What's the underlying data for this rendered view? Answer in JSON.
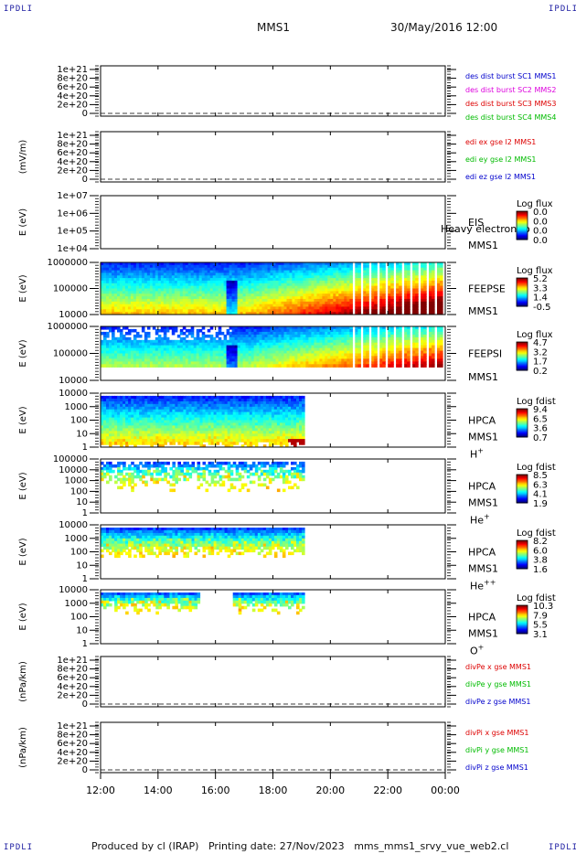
{
  "header": {
    "corner_label": "IPDLI",
    "spacecraft": "MMS1",
    "date_time": "30/May/2016 12:00"
  },
  "footer": {
    "produced_by": "Produced by cl (IRAP)",
    "printing_date": "Printing date: 27/Nov/2023",
    "filename": "mms_mms1_srvy_vue_web2.cl"
  },
  "colors": {
    "frame": "#000000",
    "red": "#dd0000",
    "magenta": "#dd00dd",
    "green": "#00bb00",
    "blue": "#0000cc"
  },
  "chart_data": [
    {
      "id": "des",
      "type": "line",
      "ylabel": "",
      "yticks": [
        "1e+21",
        "8e+20",
        "6e+20",
        "4e+20",
        "2e+20",
        "0"
      ],
      "ylim": [
        0,
        1e+21
      ],
      "legend": [
        {
          "name": "des dist burst SC1 MMS1",
          "color": "#0000cc"
        },
        {
          "name": "des dist burst SC2 MMS2",
          "color": "#dd00dd"
        },
        {
          "name": "des dist burst SC3 MMS3",
          "color": "#dd0000"
        },
        {
          "name": "des dist burst SC4 MMS4",
          "color": "#00bb00"
        }
      ],
      "dashed_zero": true
    },
    {
      "id": "edi",
      "type": "line",
      "ylabel": "(mV/m)",
      "yticks": [
        "1e+21",
        "8e+20",
        "6e+20",
        "4e+20",
        "2e+20",
        "0"
      ],
      "ylim": [
        0,
        1e+21
      ],
      "legend": [
        {
          "name": "edi ex gse l2 MMS1",
          "color": "#dd0000"
        },
        {
          "name": "edi ey gse l2 MMS1",
          "color": "#00bb00"
        },
        {
          "name": "edi ez gse l2 MMS1",
          "color": "#0000cc"
        }
      ],
      "dashed_zero": true
    },
    {
      "id": "eis",
      "type": "heatmap",
      "ylabel": "E (eV)",
      "yticks": [
        "1e+07",
        "1e+06",
        "1e+05",
        "1e+04"
      ],
      "ylim": [
        10000,
        10000000
      ],
      "instrument": "EIS",
      "instrument_note": "Heavy electron to",
      "spacecraft_label": "MMS1",
      "colorbar_title": "Log flux",
      "colorbar_ticks": [
        "0.0",
        "0.0",
        "0.0",
        "0.0"
      ],
      "data": []
    },
    {
      "id": "feepse",
      "type": "heatmap",
      "ylabel": "E (eV)",
      "yticks": [
        "1000000",
        "100000",
        "10000"
      ],
      "ylim": [
        10000,
        1000000
      ],
      "instrument": "FEEPSE",
      "spacecraft_label": "MMS1",
      "colorbar_title": "Log flux",
      "colorbar_ticks": [
        "5.2",
        "3.3",
        "1.4",
        "-0.5"
      ],
      "coverage_hours": [
        0,
        12
      ],
      "striped_hours": [
        8.7,
        12
      ]
    },
    {
      "id": "feepsi",
      "type": "heatmap",
      "ylabel": "E (eV)",
      "yticks": [
        "1000000",
        "100000",
        "10000"
      ],
      "ylim": [
        10000,
        1000000
      ],
      "instrument": "FEEPSI",
      "spacecraft_label": "MMS1",
      "colorbar_title": "Log flux",
      "colorbar_ticks": [
        "4.7",
        "3.2",
        "1.7",
        "0.2"
      ],
      "coverage_hours": [
        0,
        12
      ],
      "striped_hours": [
        8.7,
        12
      ]
    },
    {
      "id": "hpca_h",
      "type": "heatmap",
      "ylabel": "E (eV)",
      "yticks": [
        "10000",
        "1000",
        "100",
        "10",
        "1"
      ],
      "ylim": [
        1,
        40000
      ],
      "instrument": "HPCA",
      "spacecraft_label": "MMS1",
      "species": "H",
      "species_sup": "+",
      "colorbar_title": "Log fdist",
      "colorbar_ticks": [
        "9.4",
        "6.5",
        "3.6",
        "0.7"
      ],
      "coverage_hours": [
        0,
        7.1
      ]
    },
    {
      "id": "hpca_he1",
      "type": "heatmap",
      "ylabel": "E (eV)",
      "yticks": [
        "100000",
        "10000",
        "1000",
        "100",
        "10",
        "1"
      ],
      "ylim": [
        1,
        100000
      ],
      "instrument": "HPCA",
      "spacecraft_label": "MMS1",
      "species": "He",
      "species_sup": "+",
      "colorbar_title": "Log fdist",
      "colorbar_ticks": [
        "8.5",
        "6.3",
        "4.1",
        "1.9"
      ],
      "coverage_hours": [
        0,
        7.1
      ]
    },
    {
      "id": "hpca_he2",
      "type": "heatmap",
      "ylabel": "E (eV)",
      "yticks": [
        "10000",
        "1000",
        "100",
        "10",
        "1"
      ],
      "ylim": [
        1,
        40000
      ],
      "instrument": "HPCA",
      "spacecraft_label": "MMS1",
      "species": "He",
      "species_sup": "++",
      "colorbar_title": "Log fdist",
      "colorbar_ticks": [
        "8.2",
        "6.0",
        "3.8",
        "1.6"
      ],
      "coverage_hours": [
        0,
        7.1
      ]
    },
    {
      "id": "hpca_o",
      "type": "heatmap",
      "ylabel": "E (eV)",
      "yticks": [
        "10000",
        "1000",
        "100",
        "10",
        "1"
      ],
      "ylim": [
        1,
        40000
      ],
      "instrument": "HPCA",
      "spacecraft_label": "MMS1",
      "species": "O",
      "species_sup": "+",
      "colorbar_title": "Log fdist",
      "colorbar_ticks": [
        "10.3",
        "7.9",
        "5.5",
        "3.1"
      ],
      "coverage_hours": [
        0,
        7.1
      ]
    },
    {
      "id": "divpe",
      "type": "line",
      "ylabel": "(nPa/km)",
      "yticks": [
        "1e+21",
        "8e+20",
        "6e+20",
        "4e+20",
        "2e+20",
        "0"
      ],
      "ylim": [
        0,
        1e+21
      ],
      "legend": [
        {
          "name": "divPe x gse MMS1",
          "color": "#dd0000"
        },
        {
          "name": "divPe y gse MMS1",
          "color": "#00bb00"
        },
        {
          "name": "divPe z gse MMS1",
          "color": "#0000cc"
        }
      ],
      "dashed_zero": true
    },
    {
      "id": "divpi",
      "type": "line",
      "ylabel": "(nPa/km)",
      "yticks": [
        "1e+21",
        "8e+20",
        "6e+20",
        "4e+20",
        "2e+20",
        "0"
      ],
      "ylim": [
        0,
        1e+21
      ],
      "legend": [
        {
          "name": "divPi x gse MMS1",
          "color": "#dd0000"
        },
        {
          "name": "divPi y gse MMS1",
          "color": "#00bb00"
        },
        {
          "name": "divPi z gse MMS1",
          "color": "#0000cc"
        }
      ],
      "dashed_zero": true
    }
  ],
  "time_axis": {
    "xlim_hours": [
      0,
      12
    ],
    "tick_hours": [
      0,
      2,
      4,
      6,
      8,
      10,
      12
    ],
    "tick_labels": [
      "12:00",
      "14:00",
      "16:00",
      "18:00",
      "20:00",
      "22:00",
      "00:00"
    ]
  }
}
